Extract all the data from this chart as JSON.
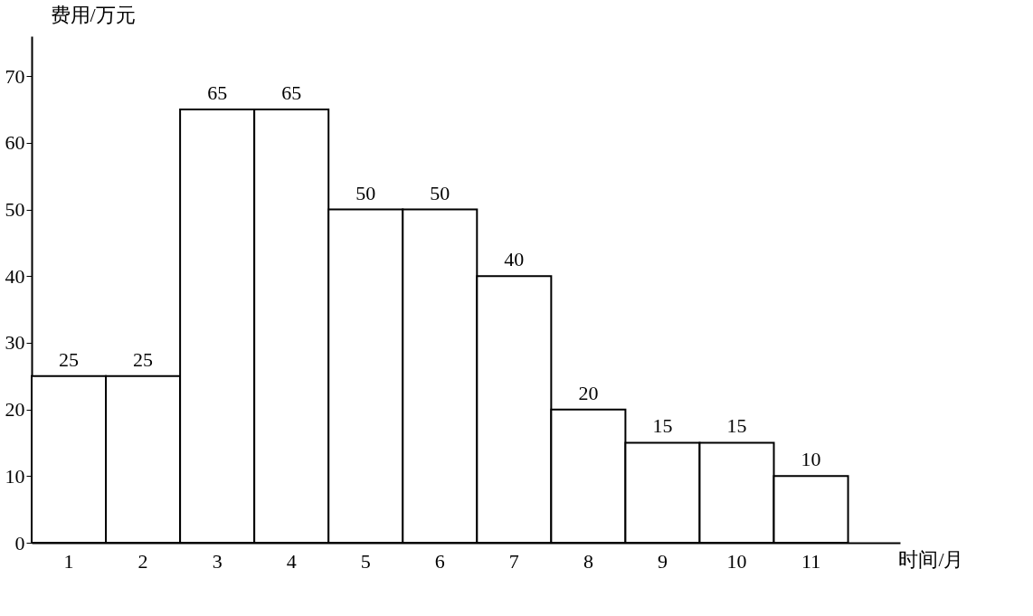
{
  "chart_data": {
    "type": "bar",
    "xlabel": "时间/月",
    "ylabel": "费用/万元",
    "categories": [
      "1",
      "2",
      "3",
      "4",
      "5",
      "6",
      "7",
      "8",
      "9",
      "10",
      "11"
    ],
    "values": [
      25,
      25,
      65,
      65,
      50,
      50,
      40,
      20,
      15,
      15,
      10
    ],
    "color": "#ffffff",
    "ylim": [
      0,
      76
    ],
    "yticks": [
      0,
      10,
      20,
      30,
      40,
      50,
      60,
      70
    ],
    "data_labels": true
  }
}
